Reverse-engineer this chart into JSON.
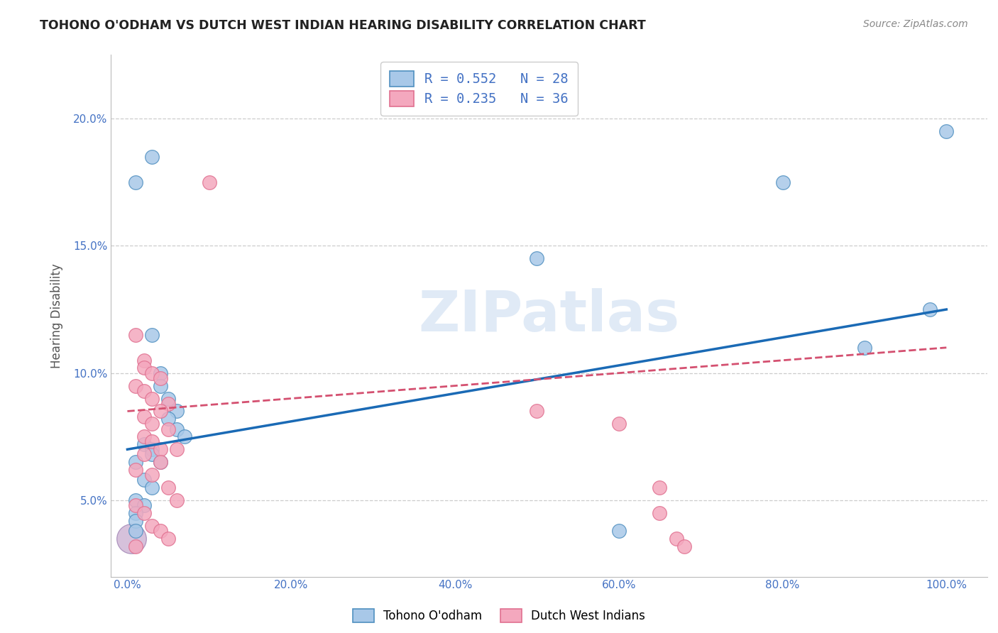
{
  "title": "TOHONO O'ODHAM VS DUTCH WEST INDIAN HEARING DISABILITY CORRELATION CHART",
  "source": "Source: ZipAtlas.com",
  "ylabel": "Hearing Disability",
  "watermark": "ZIPatlas",
  "legend_blue_R": "R = 0.552",
  "legend_blue_N": "N = 28",
  "legend_pink_R": "R = 0.235",
  "legend_pink_N": "N = 36",
  "blue_label": "Tohono O'odham",
  "pink_label": "Dutch West Indians",
  "blue_color": "#a8c8e8",
  "pink_color": "#f4a8be",
  "blue_edge_color": "#5090c0",
  "pink_edge_color": "#e07090",
  "blue_line_color": "#1a6ab5",
  "pink_line_color": "#d45070",
  "blue_scatter": [
    [
      1,
      17.5
    ],
    [
      3,
      18.5
    ],
    [
      80,
      17.5
    ],
    [
      90,
      11.0
    ],
    [
      98,
      12.5
    ],
    [
      100,
      19.5
    ],
    [
      50,
      14.5
    ],
    [
      3,
      11.5
    ],
    [
      4,
      10.0
    ],
    [
      4,
      9.5
    ],
    [
      5,
      9.0
    ],
    [
      6,
      8.5
    ],
    [
      5,
      8.2
    ],
    [
      6,
      7.8
    ],
    [
      7,
      7.5
    ],
    [
      2,
      7.2
    ],
    [
      3,
      7.0
    ],
    [
      3,
      6.8
    ],
    [
      4,
      6.5
    ],
    [
      1,
      6.5
    ],
    [
      2,
      5.8
    ],
    [
      3,
      5.5
    ],
    [
      1,
      5.0
    ],
    [
      2,
      4.8
    ],
    [
      1,
      4.5
    ],
    [
      1,
      4.2
    ],
    [
      1,
      3.8
    ],
    [
      60,
      3.8
    ]
  ],
  "pink_scatter": [
    [
      1,
      11.5
    ],
    [
      2,
      10.5
    ],
    [
      2,
      10.2
    ],
    [
      3,
      10.0
    ],
    [
      4,
      9.8
    ],
    [
      1,
      9.5
    ],
    [
      2,
      9.3
    ],
    [
      3,
      9.0
    ],
    [
      5,
      8.8
    ],
    [
      4,
      8.5
    ],
    [
      2,
      8.3
    ],
    [
      3,
      8.0
    ],
    [
      5,
      7.8
    ],
    [
      2,
      7.5
    ],
    [
      3,
      7.3
    ],
    [
      4,
      7.0
    ],
    [
      6,
      7.0
    ],
    [
      2,
      6.8
    ],
    [
      4,
      6.5
    ],
    [
      1,
      6.2
    ],
    [
      3,
      6.0
    ],
    [
      5,
      5.5
    ],
    [
      6,
      5.0
    ],
    [
      1,
      4.8
    ],
    [
      2,
      4.5
    ],
    [
      3,
      4.0
    ],
    [
      4,
      3.8
    ],
    [
      5,
      3.5
    ],
    [
      1,
      3.2
    ],
    [
      10,
      17.5
    ],
    [
      50,
      8.5
    ],
    [
      60,
      8.0
    ],
    [
      65,
      5.5
    ],
    [
      65,
      4.5
    ],
    [
      67,
      3.5
    ],
    [
      68,
      3.2
    ]
  ],
  "xlim": [
    -2,
    105
  ],
  "ylim": [
    2.0,
    22.5
  ],
  "xticks": [
    0,
    20,
    40,
    60,
    80,
    100
  ],
  "xtick_labels": [
    "0.0%",
    "20.0%",
    "40.0%",
    "60.0%",
    "80.0%",
    "100.0%"
  ],
  "ytick_vals": [
    5.0,
    10.0,
    15.0,
    20.0
  ],
  "ytick_labels": [
    "5.0%",
    "10.0%",
    "15.0%",
    "20.0%"
  ],
  "grid_color": "#cccccc",
  "background_color": "#ffffff",
  "title_color": "#222222",
  "axis_label_color": "#555555",
  "tick_color": "#4472c4",
  "legend_text_color": "#4472c4"
}
